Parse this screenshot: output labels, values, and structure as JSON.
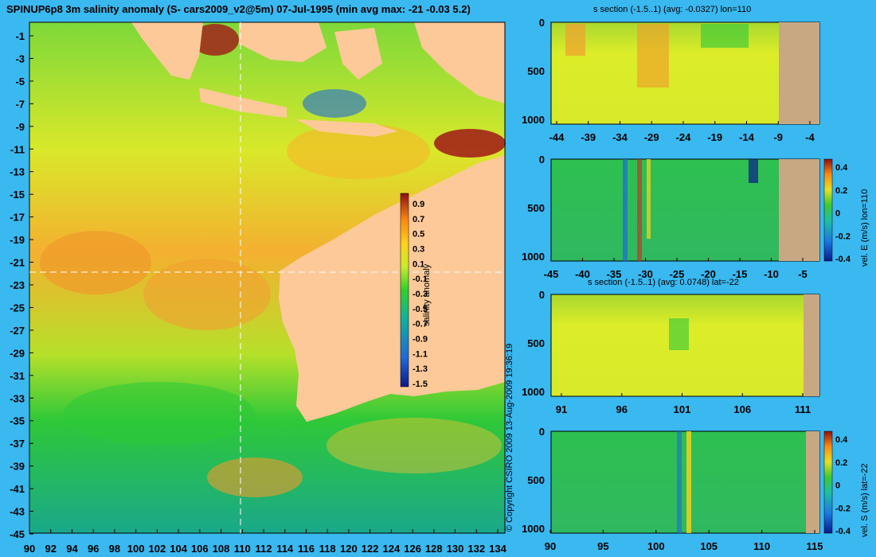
{
  "title": "SPINUP6p8 3m salinity anomaly (S- cars2009_v2@5m) 07-Jul-1995 (min avg max: -21 -0.03 5.2)",
  "copyright": "© Copyright CSIRO 2009  13-Aug-2009 19:36:19",
  "colors": {
    "background": "#3ab8f0",
    "land": "#fdc998",
    "section_land": "#c8a882"
  },
  "chart_data": [
    {
      "id": "map",
      "type": "heatmap",
      "title": "SPINUP6p8 3m salinity anomaly (S- cars2009_v2@5m) 07-Jul-1995 (min avg max: -21 -0.03 5.2)",
      "x_ticks": [
        "90",
        "92",
        "94",
        "96",
        "98",
        "100",
        "102",
        "104",
        "106",
        "108",
        "110",
        "112",
        "114",
        "116",
        "118",
        "120",
        "122",
        "124",
        "126",
        "128",
        "130",
        "132",
        "134"
      ],
      "y_ticks": [
        "-1",
        "-3",
        "-5",
        "-7",
        "-9",
        "-11",
        "-13",
        "-15",
        "-17",
        "-19",
        "-21",
        "-23",
        "-25",
        "-27",
        "-29",
        "-31",
        "-33",
        "-35",
        "-37",
        "-39",
        "-41",
        "-43",
        "-45"
      ],
      "xlim": [
        90,
        135
      ],
      "ylim": [
        -45,
        0
      ],
      "crosshair": {
        "lon": 110,
        "lat": -22
      },
      "colorbar": {
        "label": "salinity anomaly",
        "ticks": [
          "0.9",
          "0.7",
          "0.5",
          "0.3",
          "0.1",
          "-0.1",
          "-0.3",
          "-0.5",
          "-0.7",
          "-0.9",
          "-1.1",
          "-1.3",
          "-1.5"
        ],
        "range": [
          -1.5,
          1.0
        ]
      }
    },
    {
      "id": "s_lon110",
      "type": "heatmap",
      "title": "s section (-1.5..1) (avg: -0.0327) lon=110",
      "x_ticks": [
        "-44",
        "-39",
        "-34",
        "-29",
        "-24",
        "-19",
        "-14",
        "-9",
        "-4"
      ],
      "y_ticks": [
        "0",
        "500",
        "1000"
      ]
    },
    {
      "id": "v_lon110",
      "type": "heatmap",
      "title": "",
      "x_ticks": [
        "-45",
        "-40",
        "-35",
        "-30",
        "-25",
        "-20",
        "-15",
        "-10",
        "-5"
      ],
      "y_ticks": [
        "0",
        "500",
        "1000"
      ],
      "colorbar": {
        "label": "vel. E (m/s) lon=110",
        "ticks": [
          "0.4",
          "0.2",
          "0",
          "-0.2",
          "-0.4"
        ],
        "range": [
          -0.4,
          0.4
        ]
      }
    },
    {
      "id": "s_lat22",
      "type": "heatmap",
      "title": "s section (-1.5..1) (avg: 0.0748) lat=-22",
      "x_ticks": [
        "91",
        "96",
        "101",
        "106",
        "111"
      ],
      "y_ticks": [
        "0",
        "500",
        "1000"
      ]
    },
    {
      "id": "v_lat22",
      "type": "heatmap",
      "title": "",
      "x_ticks": [
        "90",
        "95",
        "100",
        "105",
        "110",
        "115"
      ],
      "y_ticks": [
        "0",
        "500",
        "1000"
      ],
      "colorbar": {
        "label": "vel. S (m/s) lat=-22",
        "ticks": [
          "0.4",
          "0.2",
          "0",
          "-0.2",
          "-0.4"
        ],
        "range": [
          -0.4,
          0.4
        ]
      }
    }
  ]
}
